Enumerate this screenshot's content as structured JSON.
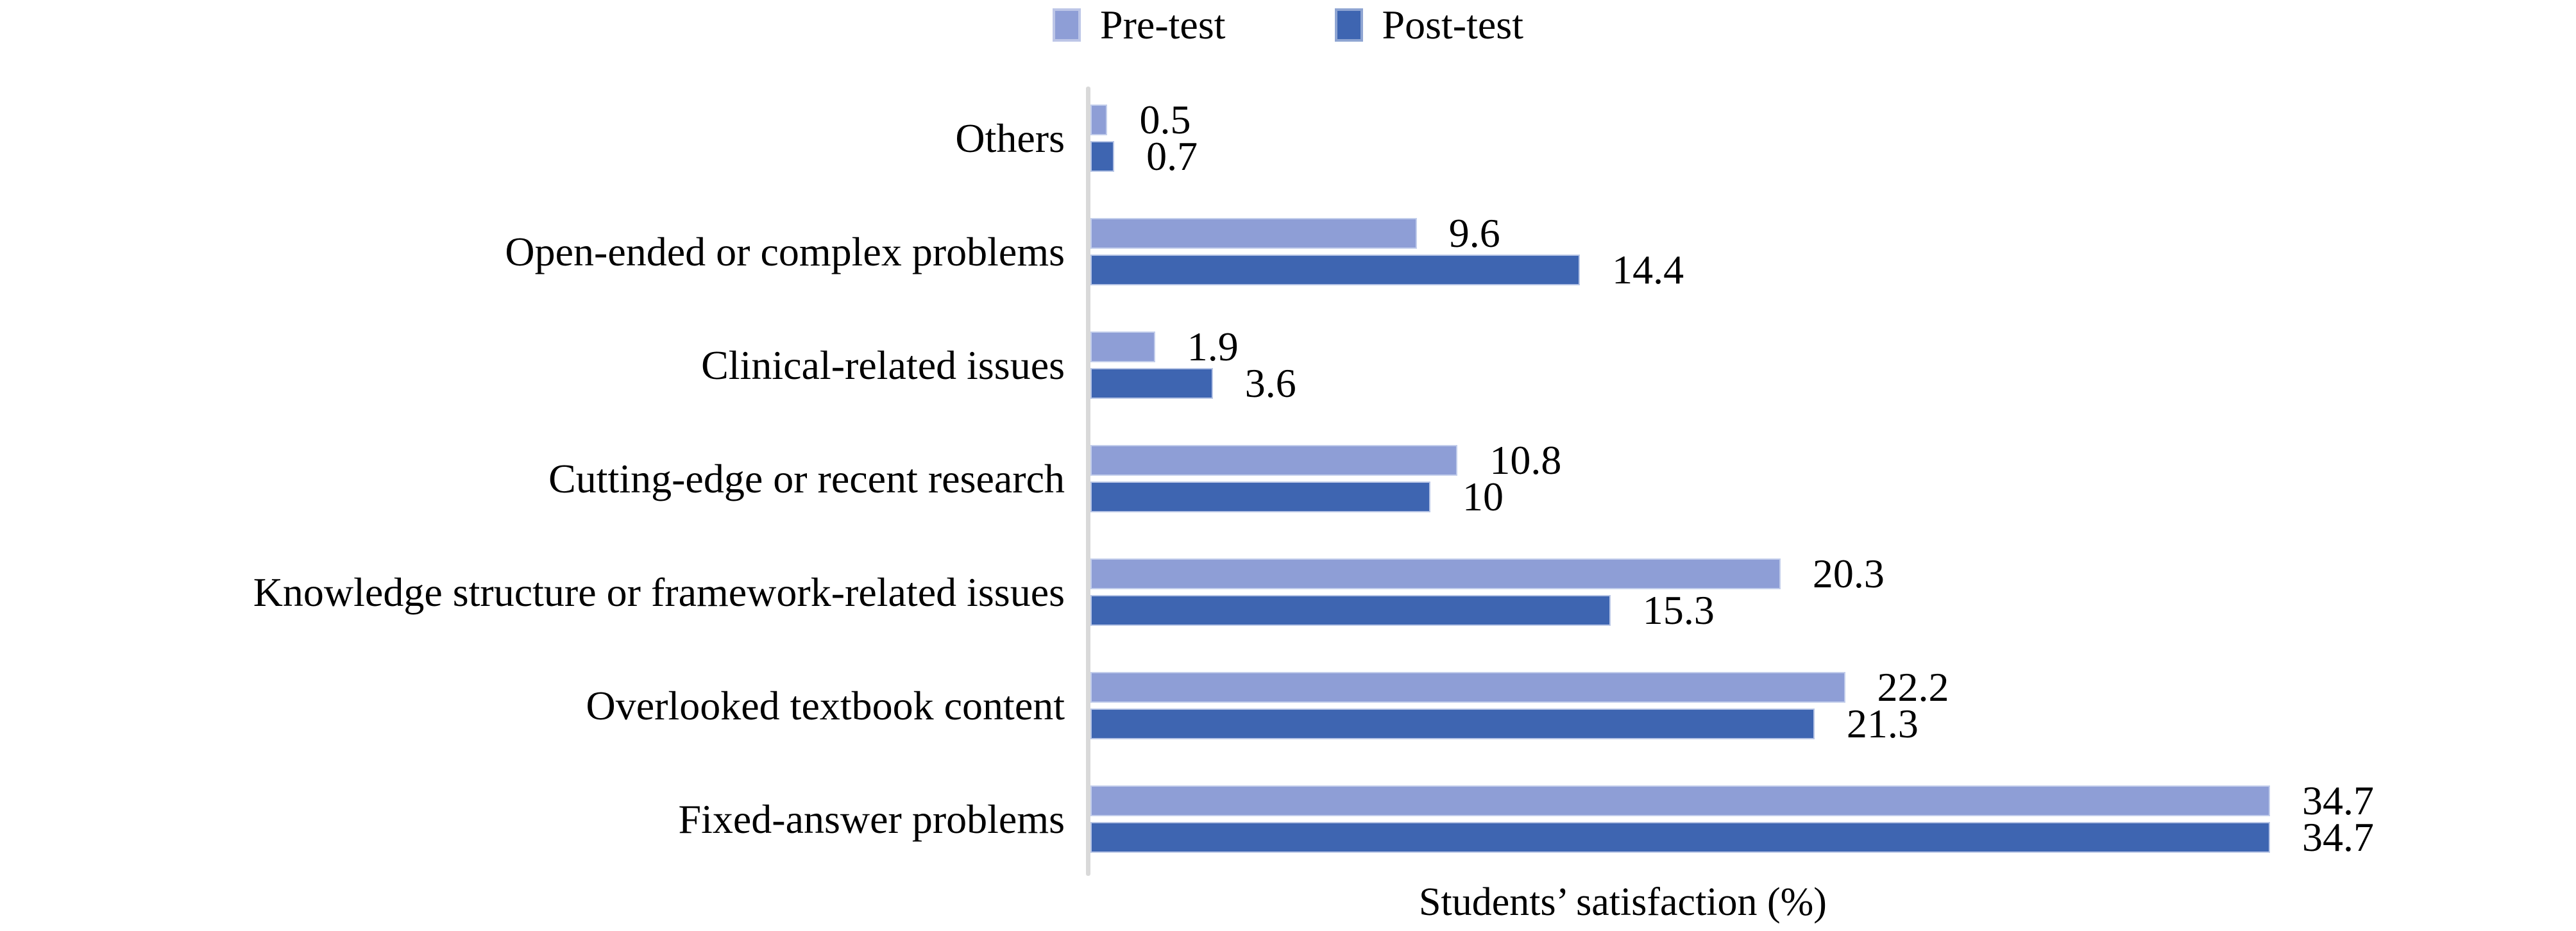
{
  "chart_data": {
    "type": "bar",
    "orientation": "horizontal",
    "title": "",
    "xlabel": "Students’ satisfaction (%)",
    "ylabel": "",
    "categories": [
      "Others",
      "Open-ended or complex problems",
      "Clinical-related issues",
      "Cutting-edge or recent research",
      "Knowledge structure or framework-related issues",
      "Overlooked textbook content",
      "Fixed-answer problems"
    ],
    "series": [
      {
        "name": "Pre-test",
        "color": "#8E9ED6",
        "values": [
          0.5,
          9.6,
          1.9,
          10.8,
          20.3,
          22.2,
          34.7
        ]
      },
      {
        "name": "Post-test",
        "color": "#3E65B1",
        "values": [
          0.7,
          14.4,
          3.6,
          10,
          15.3,
          21.3,
          34.7
        ]
      }
    ],
    "value_labels": [
      [
        "0.5",
        "9.6",
        "1.9",
        "10.8",
        "20.3",
        "22.2",
        "34.7"
      ],
      [
        "0.7",
        "14.4",
        "3.6",
        "10",
        "15.3",
        "21.3",
        "34.7"
      ]
    ],
    "axis_max": 43.7,
    "legend_position": "top",
    "grid": false,
    "axis_line_color": "#D9D9D9",
    "background": "#FFFFFF",
    "text_color": "#000000"
  }
}
